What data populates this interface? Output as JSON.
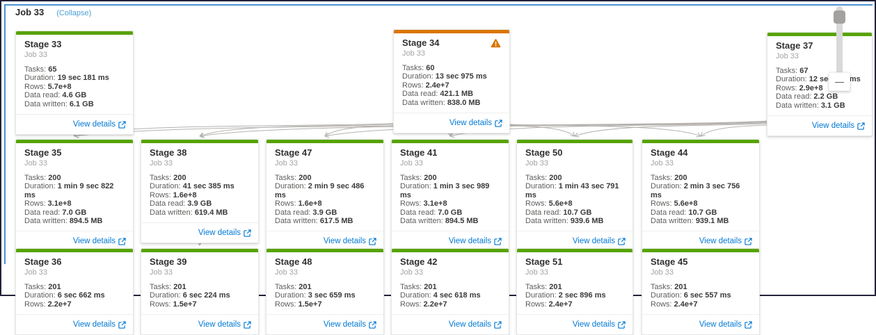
{
  "header": {
    "title": "Job 33",
    "collapse_label": "(Collapse)"
  },
  "colors": {
    "success": "#57a300",
    "warning": "#db7500",
    "link": "#0078d4",
    "collapse_link": "#4da0da",
    "edge": "#b5b2af",
    "selection": "#4a90d5"
  },
  "zoom_control": {
    "zoom_out_symbol": "—"
  },
  "cards": [
    {
      "id": "stage-33",
      "title": "Stage 33",
      "subtitle": "Job 33",
      "status": "success",
      "warning": false,
      "link": "View details",
      "stats": [
        {
          "label": "Tasks",
          "value": "65"
        },
        {
          "label": "Duration",
          "value": "19 sec 181 ms"
        },
        {
          "label": "Rows",
          "value": "5.7e+8"
        },
        {
          "label": "Data read",
          "value": "4.6 GB"
        },
        {
          "label": "Data written",
          "value": "6.1 GB"
        }
      ]
    },
    {
      "id": "stage-34",
      "title": "Stage 34",
      "subtitle": "Job 33",
      "status": "warning",
      "warning": true,
      "link": "View details",
      "stats": [
        {
          "label": "Tasks",
          "value": "60"
        },
        {
          "label": "Duration",
          "value": "13 sec 975 ms"
        },
        {
          "label": "Rows",
          "value": "2.4e+7"
        },
        {
          "label": "Data read",
          "value": "421.1 MB"
        },
        {
          "label": "Data written",
          "value": "838.0 MB"
        }
      ]
    },
    {
      "id": "stage-37",
      "title": "Stage 37",
      "subtitle": "Job 33",
      "status": "success",
      "warning": false,
      "link": "View details",
      "stats": [
        {
          "label": "Tasks",
          "value": "67"
        },
        {
          "label": "Duration",
          "value": "12 sec 763 ms"
        },
        {
          "label": "Rows",
          "value": "2.9e+8"
        },
        {
          "label": "Data read",
          "value": "2.2 GB"
        },
        {
          "label": "Data written",
          "value": "3.1 GB"
        }
      ]
    },
    {
      "id": "stage-35",
      "title": "Stage 35",
      "subtitle": "Job 33",
      "status": "success",
      "warning": false,
      "link": "View details",
      "stats": [
        {
          "label": "Tasks",
          "value": "200"
        },
        {
          "label": "Duration",
          "value": "1 min 9 sec 822 ms"
        },
        {
          "label": "Rows",
          "value": "3.1e+8"
        },
        {
          "label": "Data read",
          "value": "7.0 GB"
        },
        {
          "label": "Data written",
          "value": "894.5 MB"
        }
      ]
    },
    {
      "id": "stage-38",
      "title": "Stage 38",
      "subtitle": "Job 33",
      "status": "success",
      "warning": false,
      "link": "View details",
      "stats": [
        {
          "label": "Tasks",
          "value": "200"
        },
        {
          "label": "Duration",
          "value": "41 sec 385 ms"
        },
        {
          "label": "Rows",
          "value": "1.6e+8"
        },
        {
          "label": "Data read",
          "value": "3.9 GB"
        },
        {
          "label": "Data written",
          "value": "619.4 MB"
        }
      ]
    },
    {
      "id": "stage-47",
      "title": "Stage 47",
      "subtitle": "Job 33",
      "status": "success",
      "warning": false,
      "link": "View details",
      "stats": [
        {
          "label": "Tasks",
          "value": "200"
        },
        {
          "label": "Duration",
          "value": "2 min 9 sec 486 ms"
        },
        {
          "label": "Rows",
          "value": "1.6e+8"
        },
        {
          "label": "Data read",
          "value": "3.9 GB"
        },
        {
          "label": "Data written",
          "value": "617.5 MB"
        }
      ]
    },
    {
      "id": "stage-41",
      "title": "Stage 41",
      "subtitle": "Job 33",
      "status": "success",
      "warning": false,
      "link": "View details",
      "stats": [
        {
          "label": "Tasks",
          "value": "200"
        },
        {
          "label": "Duration",
          "value": "1 min 3 sec 989 ms"
        },
        {
          "label": "Rows",
          "value": "3.1e+8"
        },
        {
          "label": "Data read",
          "value": "7.0 GB"
        },
        {
          "label": "Data written",
          "value": "894.5 MB"
        }
      ]
    },
    {
      "id": "stage-50",
      "title": "Stage 50",
      "subtitle": "Job 33",
      "status": "success",
      "warning": false,
      "link": "View details",
      "stats": [
        {
          "label": "Tasks",
          "value": "200"
        },
        {
          "label": "Duration",
          "value": "1 min 43 sec 791 ms"
        },
        {
          "label": "Rows",
          "value": "5.6e+8"
        },
        {
          "label": "Data read",
          "value": "10.7 GB"
        },
        {
          "label": "Data written",
          "value": "939.6 MB"
        }
      ]
    },
    {
      "id": "stage-44",
      "title": "Stage 44",
      "subtitle": "Job 33",
      "status": "success",
      "warning": false,
      "link": "View details",
      "stats": [
        {
          "label": "Tasks",
          "value": "200"
        },
        {
          "label": "Duration",
          "value": "2 min 3 sec 756 ms"
        },
        {
          "label": "Rows",
          "value": "5.6e+8"
        },
        {
          "label": "Data read",
          "value": "10.7 GB"
        },
        {
          "label": "Data written",
          "value": "939.1 MB"
        }
      ]
    },
    {
      "id": "stage-36",
      "title": "Stage 36",
      "subtitle": "Job 33",
      "status": "success",
      "warning": false,
      "link": "View details",
      "stats": [
        {
          "label": "Tasks",
          "value": "201"
        },
        {
          "label": "Duration",
          "value": "6 sec 662 ms"
        },
        {
          "label": "Rows",
          "value": "2.2e+7"
        }
      ]
    },
    {
      "id": "stage-39",
      "title": "Stage 39",
      "subtitle": "Job 33",
      "status": "success",
      "warning": false,
      "link": "View details",
      "stats": [
        {
          "label": "Tasks",
          "value": "201"
        },
        {
          "label": "Duration",
          "value": "6 sec 224 ms"
        },
        {
          "label": "Rows",
          "value": "1.5e+7"
        }
      ]
    },
    {
      "id": "stage-48",
      "title": "Stage 48",
      "subtitle": "Job 33",
      "status": "success",
      "warning": false,
      "link": "View details",
      "stats": [
        {
          "label": "Tasks",
          "value": "201"
        },
        {
          "label": "Duration",
          "value": "3 sec 659 ms"
        },
        {
          "label": "Rows",
          "value": "1.5e+7"
        }
      ]
    },
    {
      "id": "stage-42",
      "title": "Stage 42",
      "subtitle": "Job 33",
      "status": "success",
      "warning": false,
      "link": "View details",
      "stats": [
        {
          "label": "Tasks",
          "value": "201"
        },
        {
          "label": "Duration",
          "value": "4 sec 618 ms"
        },
        {
          "label": "Rows",
          "value": "2.2e+7"
        }
      ]
    },
    {
      "id": "stage-51",
      "title": "Stage 51",
      "subtitle": "Job 33",
      "status": "success",
      "warning": false,
      "link": "View details",
      "stats": [
        {
          "label": "Tasks",
          "value": "201"
        },
        {
          "label": "Duration",
          "value": "2 sec 896 ms"
        },
        {
          "label": "Rows",
          "value": "2.4e+7"
        }
      ]
    },
    {
      "id": "stage-45",
      "title": "Stage 45",
      "subtitle": "Job 33",
      "status": "success",
      "warning": false,
      "link": "View details",
      "stats": [
        {
          "label": "Tasks",
          "value": "201"
        },
        {
          "label": "Duration",
          "value": "6 sec 557 ms"
        },
        {
          "label": "Rows",
          "value": "2.4e+7"
        }
      ]
    }
  ],
  "edges": [
    {
      "from": "stage-33",
      "to": "stage-35"
    },
    {
      "from": "stage-34",
      "to": "stage-35"
    },
    {
      "from": "stage-34",
      "to": "stage-38"
    },
    {
      "from": "stage-34",
      "to": "stage-47"
    },
    {
      "from": "stage-34",
      "to": "stage-41"
    },
    {
      "from": "stage-34",
      "to": "stage-50"
    },
    {
      "from": "stage-34",
      "to": "stage-44"
    },
    {
      "from": "stage-37",
      "to": "stage-35"
    },
    {
      "from": "stage-37",
      "to": "stage-38"
    },
    {
      "from": "stage-37",
      "to": "stage-47"
    },
    {
      "from": "stage-37",
      "to": "stage-41"
    },
    {
      "from": "stage-37",
      "to": "stage-50"
    },
    {
      "from": "stage-37",
      "to": "stage-44"
    },
    {
      "from": "stage-35",
      "to": "stage-36"
    },
    {
      "from": "stage-38",
      "to": "stage-39"
    },
    {
      "from": "stage-47",
      "to": "stage-48"
    },
    {
      "from": "stage-41",
      "to": "stage-42"
    },
    {
      "from": "stage-50",
      "to": "stage-51"
    },
    {
      "from": "stage-44",
      "to": "stage-45"
    }
  ]
}
